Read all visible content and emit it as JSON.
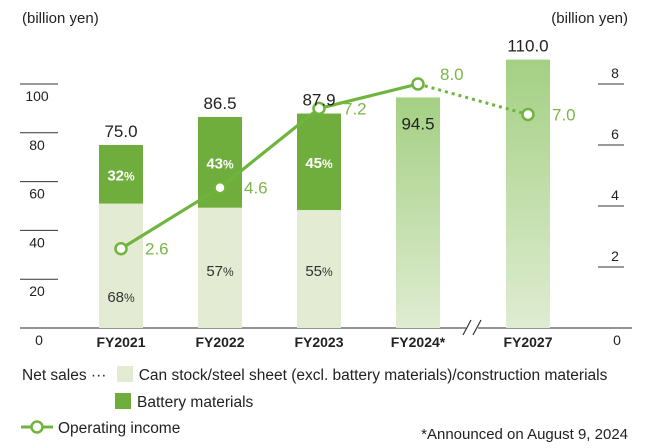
{
  "chart_data": {
    "type": "bar",
    "title": "",
    "left_axis_label": "(billion yen)",
    "right_axis_label": "(billion yen)",
    "left_axis": {
      "ylim": [
        0,
        100
      ],
      "ticks": [
        "0",
        "20",
        "40",
        "60",
        "80",
        "100"
      ]
    },
    "right_axis": {
      "ylim": [
        0,
        8
      ],
      "ticks": [
        "0",
        "2",
        "4",
        "6",
        "8"
      ]
    },
    "categories": [
      "FY2021",
      "FY2022",
      "FY2023",
      "FY2024*",
      "FY2027"
    ],
    "net_sales": {
      "totals": [
        75.0,
        86.5,
        87.9,
        94.5,
        110.0
      ],
      "total_labels": [
        "75.0",
        "86.5",
        "87.9",
        "94.5",
        "110.0"
      ],
      "stacked": [
        true,
        true,
        true,
        false,
        false
      ],
      "series": [
        {
          "name": "Can stock/steel sheet (excl. battery materials)/construction materials",
          "share_percent": [
            68,
            57,
            55
          ],
          "share_labels": [
            "68",
            "57",
            "55"
          ]
        },
        {
          "name": "Battery materials",
          "share_percent": [
            32,
            43,
            45
          ],
          "share_labels": [
            "32",
            "43",
            "45"
          ]
        }
      ]
    },
    "operating_income": {
      "name": "Operating income",
      "values": [
        2.6,
        4.6,
        7.2,
        8.0,
        7.0
      ],
      "labels": [
        "2.6",
        "4.6",
        "7.2",
        "8.0",
        "7.0"
      ],
      "forecast_from_index": 3
    },
    "percent_sign": "%",
    "zero_label": "0",
    "axis_break": true
  },
  "colors": {
    "can_stock": "#e3ebd3",
    "battery": "#6fad3c",
    "forecast_top": "#a4d083",
    "forecast_bottom": "#dfecd2",
    "line": "#6fb43c",
    "value_text": "#7ab648"
  },
  "legend": {
    "net_sales_prefix": "Net sales ···",
    "can_stock_label": "Can stock/steel sheet (excl. battery materials)/construction materials",
    "battery_label": "Battery materials",
    "operating_income_label": "Operating income"
  },
  "footnote": "*Announced on August 9, 2024"
}
